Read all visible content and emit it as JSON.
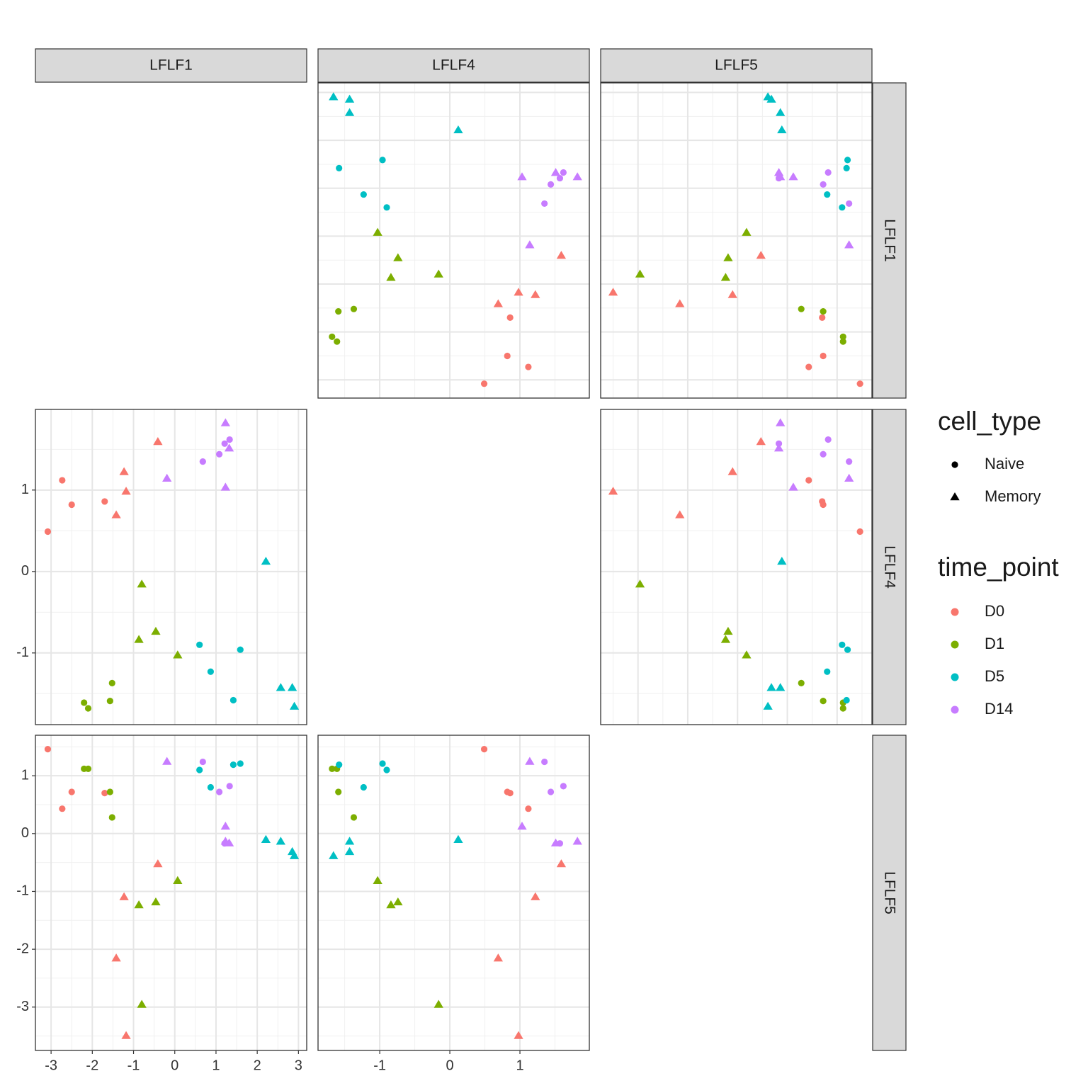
{
  "chart_data": {
    "type": "scatter",
    "variables": [
      "LFLF1",
      "LFLF4",
      "LFLF5"
    ],
    "lims": [
      [
        -3.38,
        3.2
      ],
      [
        -1.88,
        1.99
      ],
      [
        -3.75,
        1.7
      ]
    ],
    "ticks": [
      [
        -3,
        -2,
        -1,
        0,
        1,
        2,
        3
      ],
      [
        -1,
        0,
        1
      ],
      [
        -3,
        -2,
        -1,
        0,
        1
      ]
    ],
    "grid": true,
    "legend_position": "right",
    "shape_legend": {
      "title": "cell_type",
      "names": [
        "Naive",
        "Memory"
      ]
    },
    "color_legend": {
      "title": "time_point"
    },
    "series": [
      {
        "name": "D0",
        "color": "#F8766D",
        "cell_type": [
          "Naive",
          "Naive",
          "Naive",
          "Naive",
          "Memory",
          "Memory",
          "Memory",
          "Memory"
        ],
        "LFLF1": [
          -3.08,
          -2.73,
          -2.5,
          -1.7,
          -0.41,
          -1.23,
          -1.18,
          -1.42
        ],
        "LFLF4": [
          0.49,
          1.12,
          0.82,
          0.86,
          1.59,
          1.22,
          0.98,
          0.69
        ],
        "LFLF5": [
          1.46,
          0.43,
          0.72,
          0.7,
          -0.53,
          -1.1,
          -3.5,
          -2.16
        ]
      },
      {
        "name": "D1",
        "color": "#7CAE00",
        "cell_type": [
          "Memory",
          "Memory",
          "Memory",
          "Memory",
          "Naive",
          "Naive",
          "Naive",
          "Naive"
        ],
        "LFLF1": [
          -0.8,
          -0.87,
          -0.46,
          0.07,
          -1.52,
          -1.57,
          -2.2,
          -2.1
        ],
        "LFLF4": [
          -0.16,
          -0.84,
          -0.74,
          -1.03,
          -1.37,
          -1.59,
          -1.61,
          -1.68
        ],
        "LFLF5": [
          -2.96,
          -1.24,
          -1.19,
          -0.82,
          0.28,
          0.72,
          1.12,
          1.12
        ]
      },
      {
        "name": "D5",
        "color": "#00BFC4",
        "cell_type": [
          "Memory",
          "Memory",
          "Memory",
          "Memory",
          "Naive",
          "Naive",
          "Naive",
          "Naive"
        ],
        "LFLF1": [
          2.21,
          2.57,
          2.85,
          2.9,
          0.6,
          0.87,
          1.59,
          1.42
        ],
        "LFLF4": [
          0.12,
          -1.43,
          -1.43,
          -1.66,
          -0.9,
          -1.23,
          -0.96,
          -1.58
        ],
        "LFLF5": [
          -0.11,
          -0.14,
          -0.32,
          -0.39,
          1.1,
          0.8,
          1.21,
          1.19
        ]
      },
      {
        "name": "D14",
        "color": "#C77CFF",
        "cell_type": [
          "Memory",
          "Memory",
          "Memory",
          "Memory",
          "Naive",
          "Naive",
          "Naive",
          "Naive"
        ],
        "LFLF1": [
          1.23,
          1.32,
          1.23,
          -0.19,
          1.33,
          1.21,
          1.08,
          0.68
        ],
        "LFLF4": [
          1.82,
          1.51,
          1.03,
          1.14,
          1.62,
          1.57,
          1.44,
          1.35
        ],
        "LFLF5": [
          -0.14,
          -0.17,
          0.12,
          1.24,
          0.82,
          -0.17,
          0.72,
          1.24
        ]
      }
    ]
  }
}
